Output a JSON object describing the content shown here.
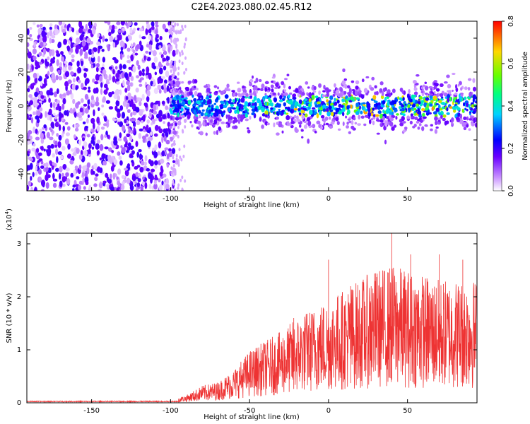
{
  "title": "C2E4.2023.080.02.45.R12",
  "chart_data": [
    {
      "type": "heatmap",
      "xlabel": "Height of straight line (km)",
      "ylabel": "Frequency (Hz)",
      "xlim": [
        -191,
        94
      ],
      "ylim": [
        -50,
        50
      ],
      "xticks": [
        -150,
        -100,
        -50,
        0,
        50
      ],
      "yticks": [
        -40,
        -20,
        0,
        20,
        40
      ],
      "colorbar": {
        "label": "Normalized spectral amplitude",
        "range": [
          0.0,
          0.8
        ],
        "ticks": [
          0.0,
          0.2,
          0.4,
          0.6,
          0.8
        ],
        "tick_labels": [
          "0.0",
          "0.2",
          "0.4",
          "0.6",
          "0.8"
        ],
        "colors": [
          "#ffffff",
          "#c890ff",
          "#6a00ff",
          "#0000ff",
          "#00d2ff",
          "#00ff80",
          "#66ff00",
          "#ffd700",
          "#ff0000"
        ]
      },
      "regions": [
        {
          "x_range": [
            -191,
            -100
          ],
          "freq_range": [
            -50,
            50
          ],
          "level": "low",
          "description_amplitude": 0.1
        },
        {
          "x_range": [
            -100,
            94
          ],
          "freq_range": [
            -12,
            12
          ],
          "level": "high",
          "description_amplitude": 0.35
        }
      ]
    },
    {
      "type": "line",
      "xlabel": "Height of straight line (km)",
      "ylabel": "SNR (10 * v/v)",
      "y_multiplier": "(x10",
      "y_multiplier_exp": "4",
      "y_multiplier_close": ")",
      "xlim": [
        -191,
        94
      ],
      "ylim": [
        0,
        3.2
      ],
      "xticks": [
        -150,
        -100,
        -50,
        0,
        50
      ],
      "yticks": [
        0,
        1,
        2,
        3
      ],
      "series": [
        {
          "color": "#ee3333",
          "envelope": [
            {
              "x": -191,
              "y": 0.02
            },
            {
              "x": -100,
              "y": 0.03
            },
            {
              "x": -90,
              "y": 0.08
            },
            {
              "x": -80,
              "y": 0.18
            },
            {
              "x": -70,
              "y": 0.22
            },
            {
              "x": -60,
              "y": 0.35
            },
            {
              "x": -50,
              "y": 0.55
            },
            {
              "x": -40,
              "y": 0.65
            },
            {
              "x": -30,
              "y": 0.75
            },
            {
              "x": -20,
              "y": 0.9
            },
            {
              "x": -10,
              "y": 1.0
            },
            {
              "x": 0,
              "y": 1.1
            },
            {
              "x": 10,
              "y": 1.2
            },
            {
              "x": 20,
              "y": 1.3
            },
            {
              "x": 30,
              "y": 1.4
            },
            {
              "x": 40,
              "y": 1.45
            },
            {
              "x": 50,
              "y": 1.4
            },
            {
              "x": 60,
              "y": 1.35
            },
            {
              "x": 70,
              "y": 1.3
            },
            {
              "x": 80,
              "y": 1.3
            },
            {
              "x": 94,
              "y": 1.3
            }
          ],
          "peaks": [
            {
              "x": -22,
              "y": 1.6
            },
            {
              "x": 0,
              "y": 2.7
            },
            {
              "x": 14,
              "y": 2.2
            },
            {
              "x": 27,
              "y": 2.2
            },
            {
              "x": 40,
              "y": 3.2
            },
            {
              "x": 52,
              "y": 2.8
            },
            {
              "x": 70,
              "y": 2.8
            },
            {
              "x": 85,
              "y": 2.7
            }
          ]
        }
      ]
    }
  ]
}
